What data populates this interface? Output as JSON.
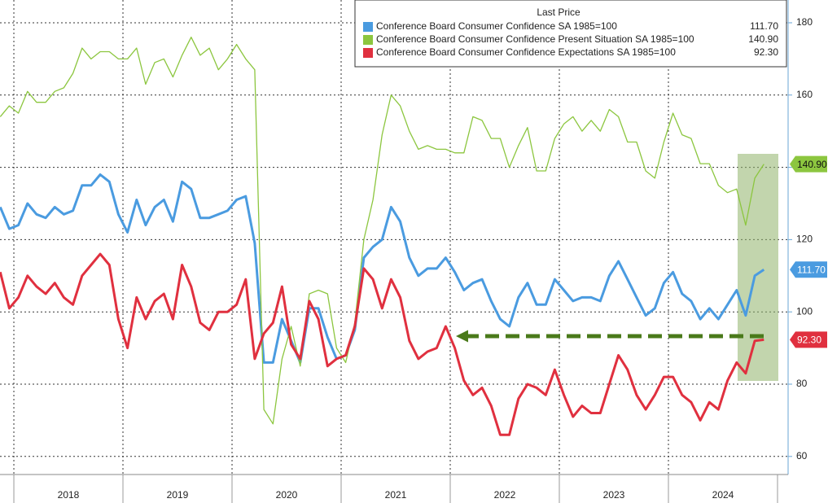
{
  "chart_data": {
    "type": "line",
    "legend_title": "Last Price",
    "legend": "top-right",
    "grid": true,
    "x": [
      2017.875,
      2017.958,
      2018.042,
      2018.125,
      2018.208,
      2018.292,
      2018.375,
      2018.458,
      2018.542,
      2018.625,
      2018.708,
      2018.792,
      2018.875,
      2018.958,
      2019.042,
      2019.125,
      2019.208,
      2019.292,
      2019.375,
      2019.458,
      2019.542,
      2019.625,
      2019.708,
      2019.792,
      2019.875,
      2019.958,
      2020.042,
      2020.125,
      2020.208,
      2020.292,
      2020.375,
      2020.458,
      2020.542,
      2020.625,
      2020.708,
      2020.792,
      2020.875,
      2020.958,
      2021.042,
      2021.125,
      2021.208,
      2021.292,
      2021.375,
      2021.458,
      2021.542,
      2021.625,
      2021.708,
      2021.792,
      2021.875,
      2021.958,
      2022.042,
      2022.125,
      2022.208,
      2022.292,
      2022.375,
      2022.458,
      2022.542,
      2022.625,
      2022.708,
      2022.792,
      2022.875,
      2022.958,
      2023.042,
      2023.125,
      2023.208,
      2023.292,
      2023.375,
      2023.458,
      2023.542,
      2023.625,
      2023.708,
      2023.792,
      2023.875,
      2023.958,
      2024.042,
      2024.125,
      2024.208,
      2024.292,
      2024.375,
      2024.458,
      2024.542,
      2024.625,
      2024.708,
      2024.792,
      2024.875
    ],
    "xlim": [
      2017.873,
      2025.097
    ],
    "xticks": [
      {
        "value": 2018,
        "label": "2018"
      },
      {
        "value": 2019,
        "label": "2019"
      },
      {
        "value": 2020,
        "label": "2020"
      },
      {
        "value": 2021,
        "label": "2021"
      },
      {
        "value": 2022,
        "label": "2022"
      },
      {
        "value": 2023,
        "label": "2023"
      },
      {
        "value": 2024,
        "label": "2024"
      }
    ],
    "ylim": [
      55,
      186.3
    ],
    "yticks": [
      60,
      80,
      100,
      120,
      140,
      160,
      180
    ],
    "series": [
      {
        "name": "Conference Board Consumer Confidence SA 1985=100",
        "color": "#4a9be0",
        "width": 3,
        "values": [
          129,
          123,
          124,
          130,
          127,
          126,
          129,
          127,
          128,
          135,
          135,
          138,
          136,
          127,
          122,
          131,
          124,
          129,
          131,
          125,
          136,
          134,
          126,
          126,
          127,
          128,
          131,
          132,
          119,
          86,
          86,
          98,
          92,
          86,
          101,
          101,
          93,
          87,
          88,
          95,
          115,
          118,
          120,
          129,
          125,
          115,
          110,
          112,
          112,
          115,
          111,
          106,
          108,
          109,
          103,
          98,
          96,
          104,
          108,
          102,
          102,
          109,
          106,
          103,
          104,
          104,
          103,
          110,
          114,
          109,
          104,
          99,
          101,
          108,
          111,
          105,
          103,
          98,
          101,
          98,
          102,
          106,
          99,
          110,
          111.7
        ],
        "value_labels": [
          null,
          null,
          null,
          null,
          null,
          null,
          null,
          null,
          null,
          null,
          null,
          null,
          null,
          null,
          null,
          null,
          null,
          null,
          null,
          null,
          null,
          null,
          null,
          null,
          null,
          null,
          null,
          null,
          null,
          null,
          null,
          null,
          null,
          null,
          null,
          null,
          null,
          null,
          null,
          null,
          null,
          null,
          null,
          null,
          null,
          null,
          null,
          null,
          null,
          null,
          null,
          null,
          null,
          null,
          null,
          null,
          null,
          null,
          null,
          null,
          null,
          null,
          null,
          null,
          null,
          null,
          null,
          null,
          null,
          null,
          null,
          null,
          null,
          null,
          null,
          null,
          null,
          null,
          null,
          null,
          null,
          null,
          null,
          null,
          "111.70"
        ]
      },
      {
        "name": "Conference Board Consumer Confidence Present Situation SA 1985=100",
        "color": "#8cc63f",
        "width": 1.3,
        "values": [
          154,
          157,
          155,
          161,
          158,
          158,
          161,
          162,
          166,
          173,
          170,
          172,
          172,
          170,
          170,
          173,
          163,
          169,
          170,
          165,
          171,
          176,
          171,
          173,
          167,
          170,
          174,
          170,
          167,
          73,
          69,
          87,
          96,
          85,
          105,
          106,
          105,
          90,
          86,
          97,
          120,
          131,
          149,
          160,
          157,
          150,
          145,
          146,
          145,
          145,
          144,
          144,
          154,
          153,
          148,
          148,
          140,
          146,
          151,
          139,
          139,
          148,
          152,
          154,
          150,
          153,
          150,
          156,
          154,
          147,
          147,
          139,
          137,
          147,
          155,
          149,
          148,
          141,
          141,
          135,
          133,
          134,
          124,
          137,
          140.9
        ],
        "value_labels": [
          null,
          null,
          null,
          null,
          null,
          null,
          null,
          null,
          null,
          null,
          null,
          null,
          null,
          null,
          null,
          null,
          null,
          null,
          null,
          null,
          null,
          null,
          null,
          null,
          null,
          null,
          null,
          null,
          null,
          null,
          null,
          null,
          null,
          null,
          null,
          null,
          null,
          null,
          null,
          null,
          null,
          null,
          null,
          null,
          null,
          null,
          null,
          null,
          null,
          null,
          null,
          null,
          null,
          null,
          null,
          null,
          null,
          null,
          null,
          null,
          null,
          null,
          null,
          null,
          null,
          null,
          null,
          null,
          null,
          null,
          null,
          null,
          null,
          null,
          null,
          null,
          null,
          null,
          null,
          null,
          null,
          null,
          null,
          null,
          "140.90"
        ]
      },
      {
        "name": "Conference Board Consumer Confidence Expectations SA 1985=100",
        "color": "#e0303f",
        "width": 3,
        "values": [
          111,
          101,
          104,
          110,
          107,
          105,
          108,
          104,
          102,
          110,
          113,
          116,
          113,
          98,
          90,
          104,
          98,
          103,
          105,
          98,
          113,
          107,
          97,
          95,
          100,
          100,
          102,
          109,
          87,
          94,
          97,
          107,
          91,
          87,
          103,
          98,
          85,
          87,
          88,
          96,
          112,
          109,
          101,
          109,
          104,
          92,
          87,
          89,
          90,
          96,
          90,
          81,
          77,
          79,
          74,
          66,
          66,
          76,
          80,
          79,
          77,
          84,
          77,
          71,
          74,
          72,
          72,
          80,
          88,
          84,
          77,
          73,
          77,
          82,
          82,
          77,
          75,
          70,
          75,
          73,
          81,
          86,
          83,
          92,
          92.3
        ],
        "value_labels": [
          null,
          null,
          null,
          null,
          null,
          null,
          null,
          null,
          null,
          null,
          null,
          null,
          null,
          null,
          null,
          null,
          null,
          null,
          null,
          null,
          null,
          null,
          null,
          null,
          null,
          null,
          null,
          null,
          null,
          null,
          null,
          null,
          null,
          null,
          null,
          null,
          null,
          null,
          null,
          null,
          null,
          null,
          null,
          null,
          null,
          null,
          null,
          null,
          null,
          null,
          null,
          null,
          null,
          null,
          null,
          null,
          null,
          null,
          null,
          null,
          null,
          null,
          null,
          null,
          null,
          null,
          null,
          null,
          null,
          null,
          null,
          null,
          null,
          null,
          null,
          null,
          null,
          null,
          null,
          null,
          null,
          null,
          null,
          null,
          "92.30"
        ]
      }
    ]
  }
}
